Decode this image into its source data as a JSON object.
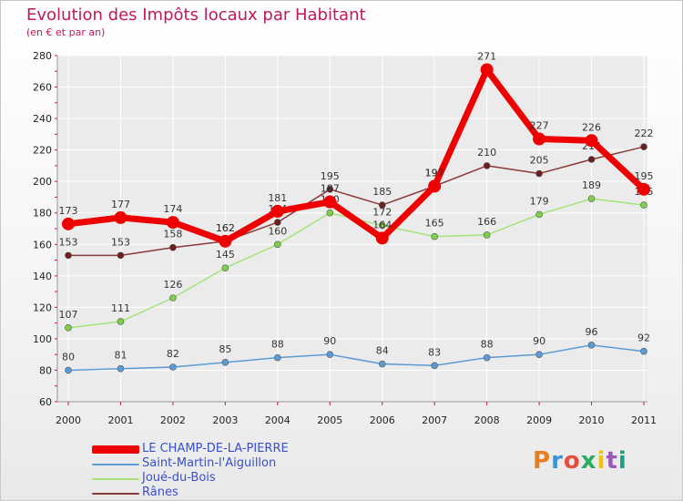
{
  "title": "Evolution des Impôts locaux par Habitant",
  "subtitle": "(en € et par an)",
  "logo": {
    "text": "Proxiti",
    "colors": [
      "#e67e22",
      "#3498db",
      "#e74c3c",
      "#27ae60",
      "#f1c40f",
      "#9b59b6",
      "#16a085"
    ]
  },
  "chart_data": {
    "type": "line",
    "title": "Evolution des Impôts locaux par Habitant",
    "subtitle": "(en € et par an)",
    "xlabel": "",
    "ylabel": "",
    "categories": [
      "2000",
      "2001",
      "2002",
      "2003",
      "2004",
      "2005",
      "2006",
      "2007",
      "2008",
      "2009",
      "2010",
      "2011"
    ],
    "ylim": [
      60,
      280
    ],
    "yticks": [
      "60",
      "80",
      "100",
      "120",
      "140",
      "160",
      "180",
      "200",
      "220",
      "240",
      "260",
      "280"
    ],
    "grid": true,
    "legend_position": "bottom-left",
    "series": [
      {
        "name": "Saint-Martin-l'Aiguillon",
        "color": "#5b9bd5",
        "marker": "#5b9bd5",
        "width": "thin",
        "values": [
          80,
          81,
          82,
          85,
          88,
          90,
          84,
          83,
          88,
          90,
          96,
          92
        ],
        "labels": [
          "80",
          "81",
          "82",
          "85",
          "88",
          "90",
          "84",
          "83",
          "88",
          "90",
          "96",
          "92"
        ]
      },
      {
        "name": "Joué-du-Bois",
        "color": "#a6e27a",
        "marker": "#7ed04b",
        "width": "thin",
        "values": [
          107,
          111,
          126,
          145,
          160,
          180,
          172,
          165,
          166,
          179,
          189,
          185
        ],
        "labels": [
          "107",
          "111",
          "126",
          "145",
          "160",
          "180",
          "172",
          "165",
          "166",
          "179",
          "189",
          "185"
        ]
      },
      {
        "name": "Rânes",
        "color": "#8b3a3a",
        "marker": "#6b1f1f",
        "width": "thin",
        "values": [
          153,
          153,
          158,
          162,
          174,
          195,
          185,
          197,
          210,
          205,
          214,
          222
        ],
        "labels": [
          "153",
          "153",
          "158",
          "162",
          "174",
          "195",
          "185",
          "197",
          "210",
          "205",
          "214",
          "222"
        ]
      },
      {
        "name": "LE CHAMP-DE-LA-PIERRE",
        "color": "#ee0000",
        "marker": "#ee0000",
        "width": "thick",
        "values": [
          173,
          177,
          174,
          162,
          181,
          187,
          164,
          197,
          271,
          227,
          226,
          195
        ],
        "labels": [
          "173",
          "177",
          "174",
          "162",
          "181",
          "187",
          "164",
          "197",
          "271",
          "227",
          "226",
          "195"
        ]
      }
    ],
    "legend_order": [
      "LE CHAMP-DE-LA-PIERRE",
      "Saint-Martin-l'Aiguillon",
      "Joué-du-Bois",
      "Rânes"
    ]
  }
}
